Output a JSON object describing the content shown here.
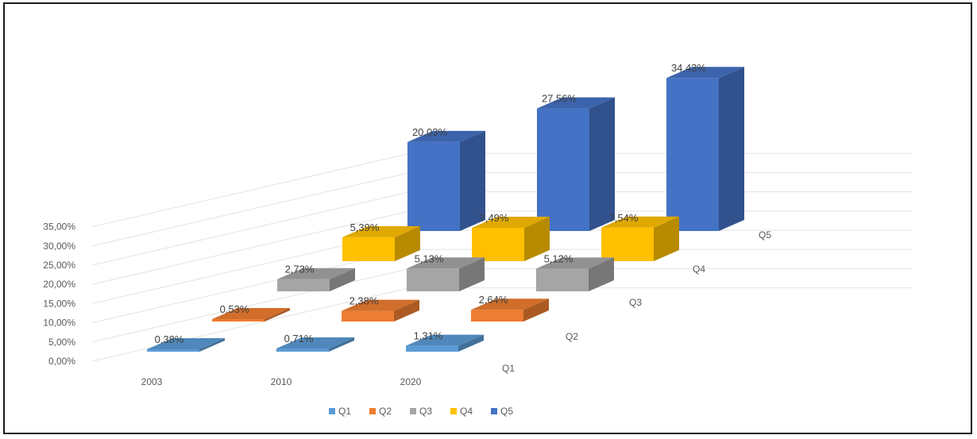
{
  "chart_data": {
    "type": "bar",
    "variant": "3d-column",
    "categories": [
      "2003",
      "2010",
      "2020"
    ],
    "series": [
      {
        "name": "Q1",
        "values": [
          0.38,
          0.71,
          1.31
        ],
        "labels": [
          "0,38%",
          "0,71%",
          "1,31%"
        ],
        "color": "#5b9bd5"
      },
      {
        "name": "Q2",
        "values": [
          0.53,
          2.38,
          2.64
        ],
        "labels": [
          "0,53%",
          "2,38%",
          "2,64%"
        ],
        "color": "#ed7d31"
      },
      {
        "name": "Q3",
        "values": [
          2.73,
          5.13,
          5.12
        ],
        "labels": [
          "2,73%",
          "5,13%",
          "5,12%"
        ],
        "color": "#a5a5a5"
      },
      {
        "name": "Q4",
        "values": [
          5.39,
          7.49,
          7.54
        ],
        "labels": [
          "5,39%",
          "7,49%",
          "7,54%"
        ],
        "color": "#ffc000"
      },
      {
        "name": "Q5",
        "values": [
          20.03,
          27.56,
          34.43
        ],
        "labels": [
          "20,03%",
          "27,56%",
          "34,43%"
        ],
        "color": "#4472c4"
      }
    ],
    "y_ticks": [
      "0,00%",
      "5,00%",
      "10,00%",
      "15,00%",
      "20,00%",
      "25,00%",
      "30,00%",
      "35,00%"
    ],
    "ylim": [
      0,
      35
    ],
    "grid": true,
    "legend_position": "bottom"
  }
}
